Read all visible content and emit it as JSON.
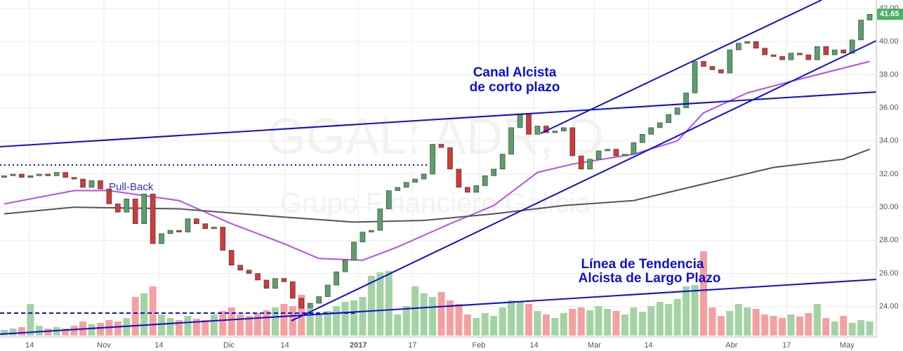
{
  "chart_data": {
    "type": "candlestick",
    "title": "GGAL: ADR, D",
    "subtitle": "Grupo Financiero Galicia",
    "annotations": [
      "Canal Alcista",
      "de corto plazo",
      "Línea de Tendencia",
      "Alcista de Largo Plazo",
      "Pull-Back"
    ],
    "ylim": [
      22.25,
      42.51
    ],
    "yticks": [
      {
        "value": 24,
        "label": "24.00"
      },
      {
        "value": 26,
        "label": "26.00"
      },
      {
        "value": 28,
        "label": "28.00"
      },
      {
        "value": 30,
        "label": "30.00"
      },
      {
        "value": 32,
        "label": "32.00"
      },
      {
        "value": 34,
        "label": "34.00"
      },
      {
        "value": 36,
        "label": "36.00"
      },
      {
        "value": 38,
        "label": "38.00"
      },
      {
        "value": 40,
        "label": "40.00"
      },
      {
        "value": 42,
        "label": "42.00"
      }
    ],
    "xticks": [
      {
        "value": 2.9,
        "label": "14"
      },
      {
        "value": 11.4,
        "label": "Nov"
      },
      {
        "value": 17.7,
        "label": "14"
      },
      {
        "value": 25.7,
        "label": "Dic"
      },
      {
        "value": 32.1,
        "label": "14"
      },
      {
        "value": 40.5,
        "label": "2017"
      },
      {
        "value": 46.7,
        "label": "17"
      },
      {
        "value": 54.3,
        "label": "Feb"
      },
      {
        "value": 60.6,
        "label": "14"
      },
      {
        "value": 67.5,
        "label": "Mar"
      },
      {
        "value": 73.7,
        "label": "14"
      },
      {
        "value": 83.2,
        "label": "Abr"
      },
      {
        "value": 89.5,
        "label": "17"
      },
      {
        "value": 96.4,
        "label": "May"
      }
    ],
    "grid": true,
    "up_color": "#5b9f6b",
    "down_color": "#d13a3a",
    "volume_up_color": "#a3d3a3",
    "volume_down_color": "#f5a0a0",
    "last_color": "#4caf6a",
    "open": [
      31.8,
      31.9,
      32.0,
      31.8,
      31.9,
      32.0,
      31.9,
      32.1,
      31.8,
      31.7,
      31.2,
      31.6,
      31.1,
      30.2,
      29.7,
      30.5,
      29.0,
      30.8,
      27.8,
      28.4,
      28.6,
      28.5,
      29.3,
      29.0,
      28.7,
      28.8,
      27.4,
      26.5,
      26.2,
      26.0,
      25.6,
      25.1,
      25.7,
      25.5,
      24.5,
      23.9,
      24.2,
      24.6,
      25.3,
      26.1,
      26.8,
      27.9,
      28.5,
      28.6,
      29.9,
      31.0,
      31.2,
      31.5,
      31.7,
      32.0,
      33.8,
      33.6,
      32.3,
      31.2,
      30.9,
      31.3,
      31.9,
      32.3,
      33.2,
      34.8,
      35.6,
      34.4,
      34.9,
      34.5,
      34.6,
      34.8,
      33.1,
      32.3,
      32.9,
      33.4,
      33.5,
      33.1,
      33.2,
      33.9,
      34.4,
      34.8,
      35.1,
      35.6,
      36.0,
      36.9,
      38.8,
      38.5,
      38.3,
      38.1,
      39.5,
      39.9,
      40.0,
      39.6,
      39.2,
      39.1,
      38.9,
      39.3,
      39.2,
      38.9,
      39.7,
      39.2,
      39.5,
      39.3,
      40.1,
      41.3
    ],
    "close": [
      31.9,
      32.0,
      31.8,
      31.9,
      32.0,
      31.9,
      32.1,
      31.8,
      31.7,
      31.2,
      31.6,
      31.1,
      30.2,
      29.7,
      30.5,
      29.0,
      30.8,
      27.8,
      28.4,
      28.6,
      28.5,
      29.3,
      29.0,
      28.7,
      28.8,
      27.4,
      26.5,
      26.2,
      26.0,
      25.6,
      25.1,
      25.7,
      25.5,
      24.5,
      23.9,
      24.2,
      24.6,
      25.3,
      26.1,
      26.8,
      27.9,
      28.5,
      28.6,
      29.9,
      31.0,
      31.2,
      31.5,
      31.7,
      32.0,
      33.8,
      33.6,
      32.3,
      31.2,
      30.9,
      31.3,
      31.9,
      32.3,
      33.2,
      34.8,
      35.6,
      34.4,
      34.9,
      34.5,
      34.6,
      34.8,
      33.1,
      32.3,
      32.9,
      33.4,
      33.5,
      33.1,
      33.2,
      33.9,
      34.4,
      34.8,
      35.1,
      35.6,
      36.0,
      36.9,
      38.8,
      38.5,
      38.3,
      38.1,
      39.5,
      39.9,
      40.0,
      39.6,
      39.2,
      39.1,
      38.9,
      39.3,
      39.2,
      38.9,
      39.7,
      39.2,
      39.5,
      39.3,
      40.1,
      41.3,
      41.65
    ],
    "volume": [
      8,
      10,
      12,
      45,
      14,
      10,
      12,
      10,
      14,
      20,
      16,
      18,
      22,
      20,
      25,
      55,
      60,
      70,
      30,
      25,
      22,
      28,
      24,
      22,
      30,
      35,
      40,
      30,
      28,
      32,
      36,
      40,
      45,
      42,
      58,
      38,
      30,
      35,
      42,
      48,
      50,
      55,
      85,
      90,
      92,
      30,
      42,
      70,
      60,
      55,
      62,
      50,
      45,
      30,
      25,
      32,
      28,
      40,
      50,
      48,
      45,
      35,
      30,
      25,
      32,
      38,
      40,
      36,
      42,
      38,
      35,
      30,
      40,
      34,
      42,
      48,
      45,
      52,
      70,
      72,
      120,
      40,
      28,
      35,
      45,
      40,
      38,
      30,
      28,
      25,
      30,
      27,
      32,
      45,
      25,
      20,
      28,
      18,
      22,
      20
    ],
    "overlays": [
      {
        "color": "#b44fe8",
        "x": [
          0,
          8,
          12,
          20,
          26,
          32,
          36,
          41,
          45,
          48,
          51,
          56,
          61,
          65,
          72,
          77,
          80,
          85,
          90,
          99
        ],
        "values": [
          30.2,
          31.0,
          31.0,
          30.4,
          29.0,
          27.8,
          26.9,
          26.8,
          27.6,
          28.3,
          29.0,
          30.1,
          32.1,
          32.6,
          33.2,
          34.0,
          35.7,
          36.9,
          37.6,
          38.8
        ]
      },
      {
        "color": "#555555",
        "x": [
          0,
          8,
          20,
          32,
          40,
          48,
          56,
          64,
          72,
          80,
          88,
          96,
          99
        ],
        "values": [
          29.6,
          30.0,
          29.9,
          29.4,
          29.1,
          29.2,
          29.6,
          30.1,
          30.4,
          31.4,
          32.4,
          32.9,
          33.5
        ]
      }
    ]
  }
}
